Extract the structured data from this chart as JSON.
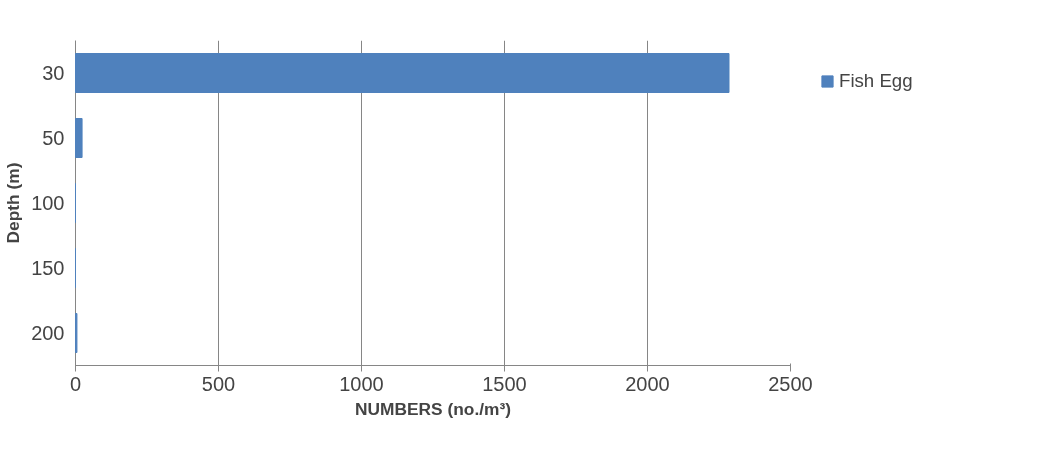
{
  "chart_data": {
    "type": "bar",
    "orientation": "horizontal",
    "categories": [
      "30",
      "50",
      "100",
      "150",
      "200"
    ],
    "series": [
      {
        "name": "Fish Egg",
        "color": "#4f81bd",
        "values": [
          2285,
          23,
          0,
          0,
          5
        ]
      }
    ],
    "xlim": [
      0,
      2500
    ],
    "xticks": [
      0,
      500,
      1000,
      1500,
      2000,
      2500
    ],
    "xlabel": "NUMBERS (no./m³)",
    "ylabel": "Depth (m)",
    "grid": "x",
    "legend": "right"
  }
}
